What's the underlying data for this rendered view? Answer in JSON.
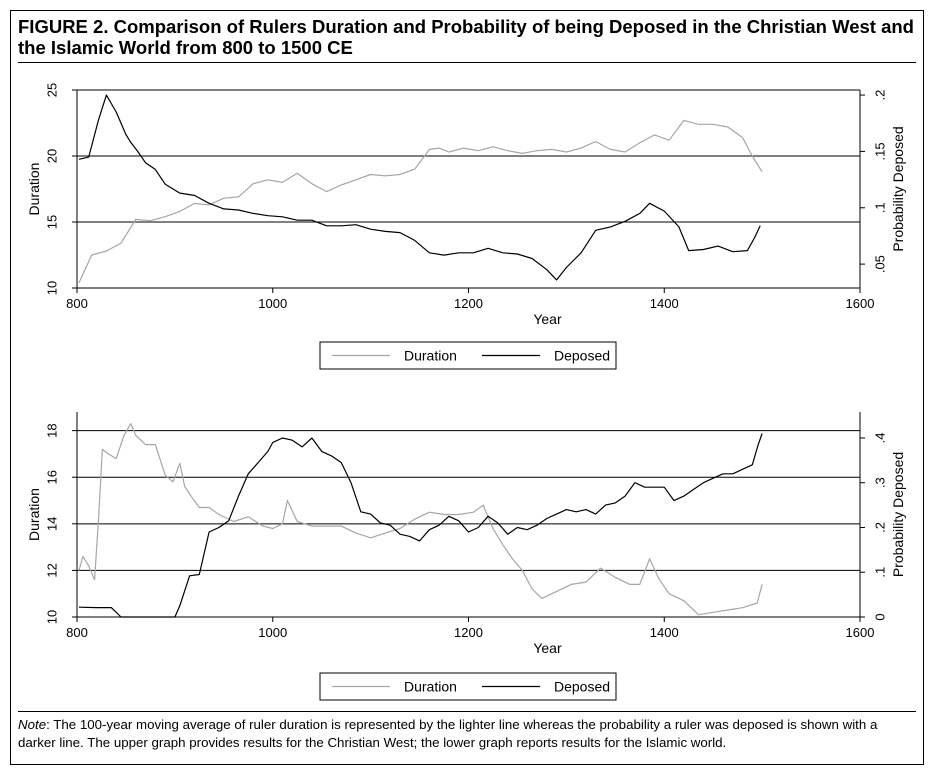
{
  "figure": {
    "title": "FIGURE 2.    Comparison of Rulers Duration and Probability of being Deposed in the Christian West and the Islamic World from 800 to 1500 CE",
    "note_label": "Note",
    "note_text": ": The 100-year moving average of ruler duration is represented by the lighter line whereas the probability a ruler was deposed is shown with a darker line. The upper graph provides results for the Christian West; the lower graph reports results for the Islamic world."
  },
  "colors": {
    "duration": "#a6a6a6",
    "deposed": "#000000",
    "gridline": "#000000"
  },
  "chart_data": [
    {
      "type": "line",
      "xlabel": "Year",
      "ylabel": "Duration",
      "y2label": "Probability Deposed",
      "xlim": [
        800,
        1600
      ],
      "xticks": [
        "800",
        "1000",
        "1200",
        "1400",
        "1600"
      ],
      "ylim": [
        10,
        25
      ],
      "yticks": [
        "10",
        "15",
        "20",
        "25"
      ],
      "y2lim": [
        0.0288,
        0.2045
      ],
      "y2ticks": [
        ".05",
        ".1",
        ".15",
        ".2"
      ],
      "grid": true,
      "legend_position": "bottom",
      "series": [
        {
          "name": "Duration",
          "axis": "left",
          "x": [
            802,
            815,
            830,
            845,
            860,
            875,
            890,
            905,
            920,
            935,
            950,
            965,
            980,
            995,
            1010,
            1025,
            1040,
            1055,
            1070,
            1085,
            1100,
            1115,
            1130,
            1145,
            1160,
            1170,
            1180,
            1195,
            1210,
            1225,
            1240,
            1255,
            1270,
            1285,
            1300,
            1315,
            1330,
            1345,
            1360,
            1375,
            1390,
            1405,
            1420,
            1435,
            1450,
            1465,
            1480,
            1490,
            1500
          ],
          "y": [
            10.4,
            12.5,
            12.8,
            13.4,
            15.2,
            15.1,
            15.4,
            15.8,
            16.4,
            16.3,
            16.8,
            16.9,
            17.9,
            18.2,
            18.0,
            18.7,
            17.9,
            17.3,
            17.8,
            18.2,
            18.6,
            18.5,
            18.6,
            19.0,
            20.5,
            20.6,
            20.3,
            20.6,
            20.4,
            20.7,
            20.4,
            20.2,
            20.4,
            20.5,
            20.3,
            20.6,
            21.1,
            20.5,
            20.3,
            21.0,
            21.6,
            21.2,
            22.7,
            22.4,
            22.4,
            22.2,
            21.4,
            20.0,
            18.8
          ]
        },
        {
          "name": "Deposed",
          "axis": "right",
          "x": [
            802,
            812,
            822,
            830,
            840,
            850,
            855,
            862,
            870,
            880,
            890,
            905,
            920,
            935,
            950,
            965,
            980,
            995,
            1010,
            1025,
            1040,
            1055,
            1070,
            1085,
            1100,
            1115,
            1130,
            1145,
            1160,
            1175,
            1190,
            1205,
            1220,
            1235,
            1250,
            1265,
            1280,
            1290,
            1300,
            1315,
            1330,
            1345,
            1360,
            1375,
            1385,
            1400,
            1415,
            1425,
            1440,
            1455,
            1470,
            1485,
            1492,
            1498
          ],
          "y": [
            0.143,
            0.145,
            0.178,
            0.2,
            0.185,
            0.165,
            0.158,
            0.15,
            0.14,
            0.134,
            0.121,
            0.113,
            0.111,
            0.104,
            0.099,
            0.098,
            0.095,
            0.093,
            0.092,
            0.089,
            0.089,
            0.084,
            0.084,
            0.085,
            0.081,
            0.079,
            0.078,
            0.071,
            0.06,
            0.058,
            0.06,
            0.06,
            0.064,
            0.06,
            0.059,
            0.055,
            0.045,
            0.036,
            0.047,
            0.06,
            0.08,
            0.083,
            0.088,
            0.095,
            0.104,
            0.097,
            0.083,
            0.062,
            0.063,
            0.066,
            0.061,
            0.062,
            0.073,
            0.084
          ]
        }
      ]
    },
    {
      "type": "line",
      "xlabel": "Year",
      "ylabel": "Duration",
      "y2label": "Probability Deposed",
      "xlim": [
        800,
        1600
      ],
      "xticks": [
        "800",
        "1000",
        "1200",
        "1400",
        "1600"
      ],
      "ylim": [
        10,
        18.8
      ],
      "yticks": [
        "10",
        "12",
        "14",
        "16",
        "18"
      ],
      "y2lim": [
        0,
        0.458
      ],
      "y2ticks": [
        "0",
        ".1",
        ".2",
        ".3",
        ".4"
      ],
      "grid": true,
      "legend_position": "bottom",
      "series": [
        {
          "name": "Duration",
          "axis": "left",
          "x": [
            802,
            806,
            812,
            818,
            822,
            826,
            832,
            840,
            848,
            855,
            860,
            870,
            880,
            890,
            898,
            905,
            910,
            918,
            925,
            935,
            945,
            960,
            975,
            990,
            1000,
            1010,
            1015,
            1025,
            1040,
            1055,
            1070,
            1085,
            1100,
            1115,
            1130,
            1145,
            1160,
            1175,
            1190,
            1205,
            1215,
            1225,
            1235,
            1245,
            1255,
            1265,
            1275,
            1290,
            1305,
            1320,
            1335,
            1350,
            1365,
            1375,
            1385,
            1395,
            1405,
            1420,
            1435,
            1450,
            1465,
            1480,
            1495,
            1500
          ],
          "y": [
            12.0,
            12.6,
            12.2,
            11.6,
            14.2,
            17.2,
            17.0,
            16.8,
            17.8,
            18.3,
            17.8,
            17.4,
            17.4,
            16.1,
            15.8,
            16.6,
            15.6,
            15.1,
            14.7,
            14.7,
            14.4,
            14.1,
            14.3,
            13.9,
            13.8,
            14.0,
            15.0,
            14.1,
            13.9,
            13.9,
            13.9,
            13.6,
            13.4,
            13.6,
            13.8,
            14.2,
            14.5,
            14.4,
            14.4,
            14.5,
            14.8,
            13.8,
            13.1,
            12.5,
            12.0,
            11.2,
            10.8,
            11.1,
            11.4,
            11.5,
            12.1,
            11.7,
            11.4,
            11.4,
            12.5,
            11.6,
            11.0,
            10.7,
            10.1,
            10.2,
            10.3,
            10.4,
            10.6,
            11.4
          ]
        },
        {
          "name": "Deposed",
          "axis": "right",
          "x": [
            802,
            820,
            835,
            845,
            860,
            875,
            890,
            900,
            905,
            915,
            925,
            935,
            945,
            955,
            965,
            975,
            985,
            995,
            1000,
            1010,
            1020,
            1030,
            1040,
            1050,
            1060,
            1070,
            1080,
            1090,
            1100,
            1110,
            1120,
            1130,
            1140,
            1150,
            1160,
            1170,
            1180,
            1190,
            1200,
            1210,
            1220,
            1230,
            1240,
            1250,
            1260,
            1270,
            1280,
            1290,
            1300,
            1310,
            1320,
            1330,
            1340,
            1350,
            1360,
            1370,
            1380,
            1390,
            1400,
            1410,
            1420,
            1430,
            1440,
            1450,
            1460,
            1470,
            1480,
            1490,
            1496,
            1500
          ],
          "y": [
            0.022,
            0.021,
            0.021,
            0.0,
            0.0,
            0.0,
            0.0,
            0.0,
            0.025,
            0.092,
            0.095,
            0.19,
            0.2,
            0.215,
            0.27,
            0.32,
            0.345,
            0.37,
            0.39,
            0.4,
            0.395,
            0.38,
            0.4,
            0.37,
            0.36,
            0.345,
            0.3,
            0.235,
            0.23,
            0.21,
            0.205,
            0.185,
            0.18,
            0.17,
            0.195,
            0.205,
            0.225,
            0.215,
            0.19,
            0.2,
            0.225,
            0.21,
            0.185,
            0.2,
            0.195,
            0.205,
            0.22,
            0.23,
            0.24,
            0.235,
            0.24,
            0.23,
            0.25,
            0.255,
            0.27,
            0.3,
            0.29,
            0.29,
            0.29,
            0.26,
            0.27,
            0.285,
            0.3,
            0.31,
            0.32,
            0.32,
            0.33,
            0.34,
            0.385,
            0.41
          ]
        }
      ]
    }
  ]
}
